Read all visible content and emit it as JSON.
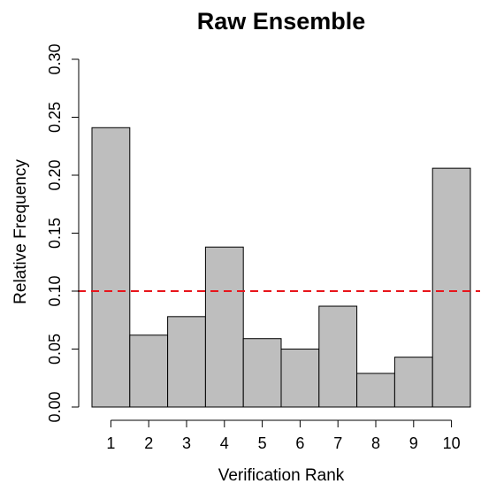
{
  "chart_data": {
    "type": "bar",
    "title": "Raw Ensemble",
    "xlabel": "Verification Rank",
    "ylabel": "Relative Frequency",
    "categories": [
      "1",
      "2",
      "3",
      "4",
      "5",
      "6",
      "7",
      "8",
      "9",
      "10"
    ],
    "values": [
      0.241,
      0.062,
      0.078,
      0.138,
      0.059,
      0.05,
      0.087,
      0.029,
      0.043,
      0.206
    ],
    "ylim": [
      0,
      0.3
    ],
    "yticks": [
      "0.00",
      "0.05",
      "0.10",
      "0.15",
      "0.20",
      "0.25",
      "0.30"
    ],
    "reference_line": {
      "y": 0.1,
      "color": "#e8151b",
      "style": "dashed"
    },
    "bar_color": "#bebebe",
    "grid": false,
    "legend": "none"
  }
}
